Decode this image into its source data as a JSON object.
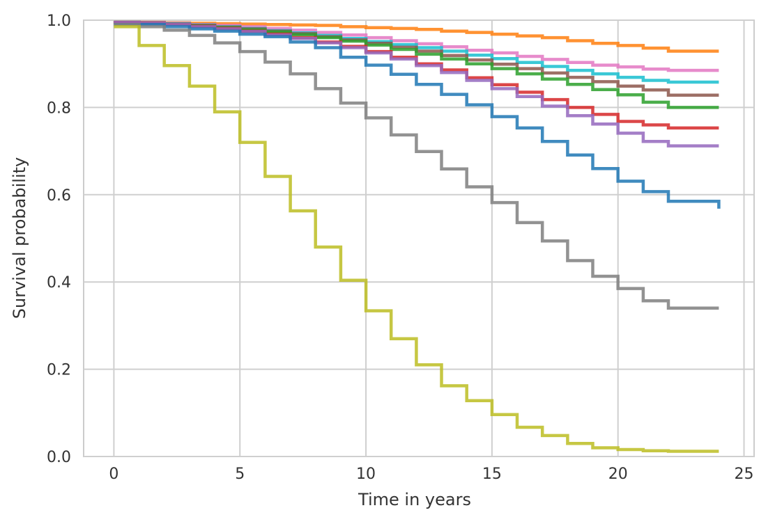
{
  "chart_data": {
    "type": "line",
    "step": true,
    "title": "",
    "xlabel": "Time in years",
    "ylabel": "Survival probability",
    "xlim": [
      -1.2,
      25.4
    ],
    "ylim": [
      0.0,
      1.0
    ],
    "xticks": [
      0,
      5,
      10,
      15,
      20,
      25
    ],
    "yticks": [
      0.0,
      0.2,
      0.4,
      0.6,
      0.8,
      1.0
    ],
    "xtick_labels": [
      "0",
      "5",
      "10",
      "15",
      "20",
      "25"
    ],
    "ytick_labels": [
      "0.0",
      "0.2",
      "0.4",
      "0.6",
      "0.8",
      "1.0"
    ],
    "grid": true,
    "legend": false,
    "x": [
      0,
      1,
      2,
      3,
      4,
      5,
      6,
      7,
      8,
      9,
      10,
      11,
      12,
      13,
      14,
      15,
      16,
      17,
      18,
      19,
      20,
      21,
      22,
      24
    ],
    "series": [
      {
        "color": "#ff7f0e",
        "values": [
          0.995,
          0.995,
          0.994,
          0.993,
          0.992,
          0.991,
          0.99,
          0.989,
          0.988,
          0.985,
          0.983,
          0.981,
          0.979,
          0.975,
          0.972,
          0.968,
          0.964,
          0.96,
          0.953,
          0.947,
          0.942,
          0.936,
          0.929,
          0.929
        ]
      },
      {
        "color": "#e377c2",
        "values": [
          0.995,
          0.995,
          0.993,
          0.99,
          0.988,
          0.985,
          0.981,
          0.977,
          0.972,
          0.966,
          0.96,
          0.953,
          0.946,
          0.939,
          0.931,
          0.925,
          0.917,
          0.91,
          0.903,
          0.897,
          0.893,
          0.888,
          0.885,
          0.885
        ]
      },
      {
        "color": "#17becf",
        "values": [
          0.995,
          0.994,
          0.992,
          0.989,
          0.985,
          0.981,
          0.976,
          0.971,
          0.965,
          0.958,
          0.951,
          0.944,
          0.937,
          0.929,
          0.92,
          0.912,
          0.903,
          0.894,
          0.885,
          0.877,
          0.869,
          0.862,
          0.858,
          0.858
        ]
      },
      {
        "color": "#8c564b",
        "values": [
          0.995,
          0.994,
          0.991,
          0.988,
          0.984,
          0.98,
          0.975,
          0.969,
          0.962,
          0.955,
          0.947,
          0.938,
          0.929,
          0.919,
          0.909,
          0.899,
          0.889,
          0.879,
          0.869,
          0.859,
          0.849,
          0.84,
          0.828,
          0.828
        ]
      },
      {
        "color": "#2ca02c",
        "values": [
          0.995,
          0.993,
          0.99,
          0.987,
          0.983,
          0.978,
          0.973,
          0.967,
          0.96,
          0.952,
          0.943,
          0.933,
          0.922,
          0.911,
          0.9,
          0.889,
          0.877,
          0.865,
          0.853,
          0.841,
          0.829,
          0.812,
          0.8,
          0.8
        ]
      },
      {
        "color": "#d62728",
        "values": [
          0.995,
          0.993,
          0.99,
          0.986,
          0.981,
          0.975,
          0.968,
          0.96,
          0.95,
          0.94,
          0.928,
          0.915,
          0.9,
          0.886,
          0.868,
          0.852,
          0.835,
          0.818,
          0.8,
          0.784,
          0.768,
          0.76,
          0.753,
          0.753
        ]
      },
      {
        "color": "#9467bd",
        "values": [
          0.995,
          0.993,
          0.99,
          0.985,
          0.98,
          0.974,
          0.966,
          0.958,
          0.948,
          0.937,
          0.925,
          0.911,
          0.896,
          0.88,
          0.862,
          0.843,
          0.825,
          0.803,
          0.781,
          0.762,
          0.741,
          0.722,
          0.712,
          0.712
        ]
      },
      {
        "color": "#1f77b4",
        "values": [
          0.99,
          0.99,
          0.985,
          0.98,
          0.975,
          0.968,
          0.962,
          0.95,
          0.937,
          0.915,
          0.897,
          0.876,
          0.853,
          0.83,
          0.806,
          0.779,
          0.753,
          0.722,
          0.691,
          0.66,
          0.631,
          0.607,
          0.585,
          0.568
        ]
      },
      {
        "color": "#7f7f7f",
        "values": [
          0.99,
          0.985,
          0.977,
          0.965,
          0.948,
          0.928,
          0.904,
          0.877,
          0.843,
          0.81,
          0.776,
          0.737,
          0.699,
          0.659,
          0.618,
          0.582,
          0.536,
          0.494,
          0.449,
          0.413,
          0.385,
          0.357,
          0.34,
          0.34
        ]
      },
      {
        "color": "#bcbd22",
        "values": [
          0.985,
          0.942,
          0.896,
          0.849,
          0.79,
          0.72,
          0.642,
          0.563,
          0.48,
          0.404,
          0.334,
          0.27,
          0.21,
          0.162,
          0.128,
          0.096,
          0.067,
          0.048,
          0.03,
          0.02,
          0.016,
          0.013,
          0.012,
          0.012
        ]
      }
    ]
  }
}
